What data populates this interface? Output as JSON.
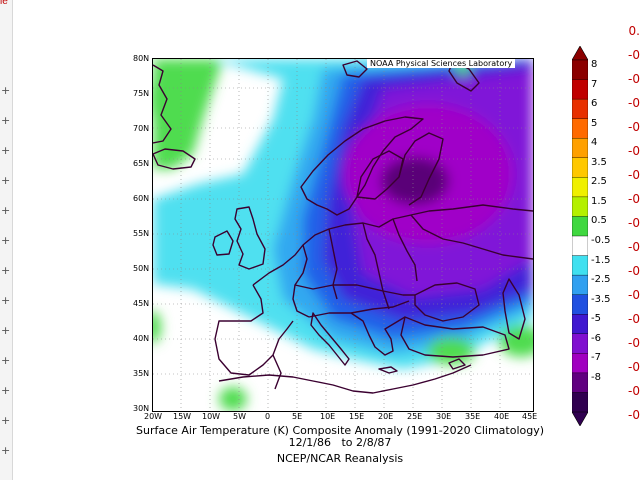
{
  "credit": "NOAA Physical Sciences Laboratory",
  "title_line1": "Surface Air Temperature (K) Composite Anomaly (1991-2020 Climatology)",
  "title_line2": "12/1/86   to 2/8/87",
  "title_line3": "NCEP/NCAR Reanalysis",
  "lat_labels": [
    "80N",
    "75N",
    "70N",
    "65N",
    "60N",
    "55N",
    "50N",
    "45N",
    "40N",
    "35N",
    "30N"
  ],
  "lon_labels": [
    "20W",
    "15W",
    "10W",
    "5W",
    "0",
    "5E",
    "10E",
    "15E",
    "20E",
    "25E",
    "30E",
    "35E",
    "40E",
    "45E"
  ],
  "colorbar": {
    "labels": [
      "8",
      "7",
      "6",
      "5",
      "4",
      "3.5",
      "2.5",
      "1.5",
      "0.5",
      "-0.5",
      "-1.5",
      "-2.5",
      "-3.5",
      "-5",
      "-6",
      "-7",
      "-8"
    ],
    "colors": [
      "#8b0000",
      "#c00000",
      "#e83000",
      "#ff6a00",
      "#ffa000",
      "#ffc800",
      "#f0f000",
      "#b4f000",
      "#40d840",
      "#ffffff",
      "#40e0f0",
      "#30a0f0",
      "#2050e0",
      "#4018d0",
      "#8010d0",
      "#a000c0",
      "#600080",
      "#300050"
    ]
  },
  "right_ticks": [
    "0.",
    "-0",
    "-0",
    "-0",
    "-0",
    "-0",
    "-0",
    "-0",
    "-0",
    "-0",
    "-0",
    "-0",
    "-0",
    "-0",
    "-0",
    "-0",
    "-0"
  ],
  "left_frag": "ie"
}
